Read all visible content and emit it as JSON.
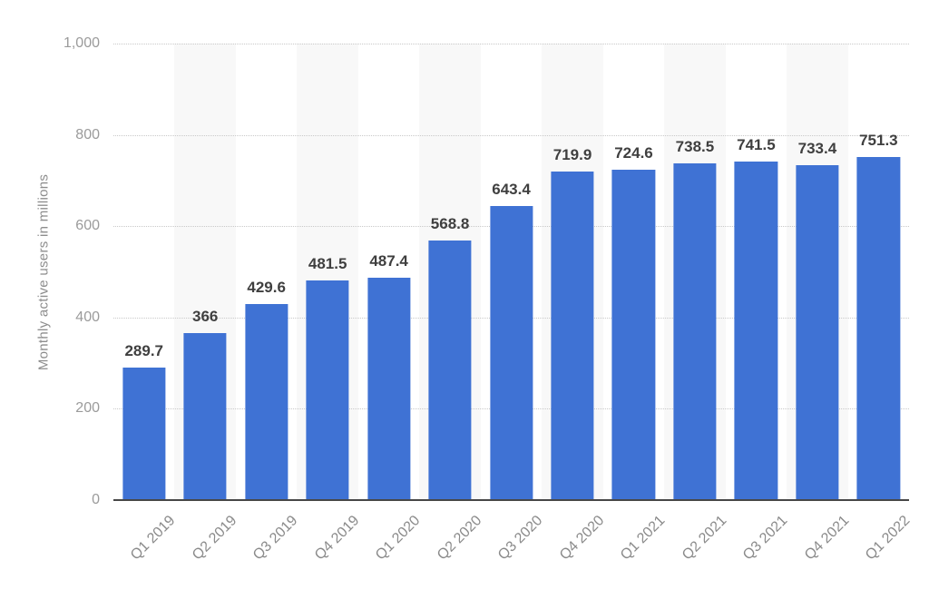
{
  "chart_data": {
    "type": "bar",
    "title": "",
    "categories": [
      "Q1 2019",
      "Q2 2019",
      "Q3 2019",
      "Q4 2019",
      "Q1 2020",
      "Q2 2020",
      "Q3 2020",
      "Q4 2020",
      "Q1 2021",
      "Q2 2021",
      "Q3 2021",
      "Q4 2021",
      "Q1 2022"
    ],
    "values": [
      289.7,
      366,
      429.6,
      481.5,
      487.4,
      568.8,
      643.4,
      719.9,
      724.6,
      738.5,
      741.5,
      733.4,
      751.3
    ],
    "xlabel": "",
    "ylabel": "Monthly active users in millions",
    "ylim": [
      0,
      1000
    ],
    "yticks": [
      0,
      200,
      400,
      600,
      800,
      1000
    ],
    "ytick_labels": [
      "0",
      "200",
      "400",
      "600",
      "800",
      "1,000"
    ],
    "grid": "horizontal-dotted",
    "legend": "none",
    "colors": {
      "bar": "#3f72d4",
      "column_stripe": "#f8f8f8",
      "gridline": "#c9c9c9",
      "baseline": "#474747",
      "value_label": "#3f3f3f",
      "x_tick_label": "#8a8a8a",
      "y_tick_label": "#9b9b9b",
      "y_axis_title": "#8d8d8d",
      "background": "#ffffff"
    }
  }
}
